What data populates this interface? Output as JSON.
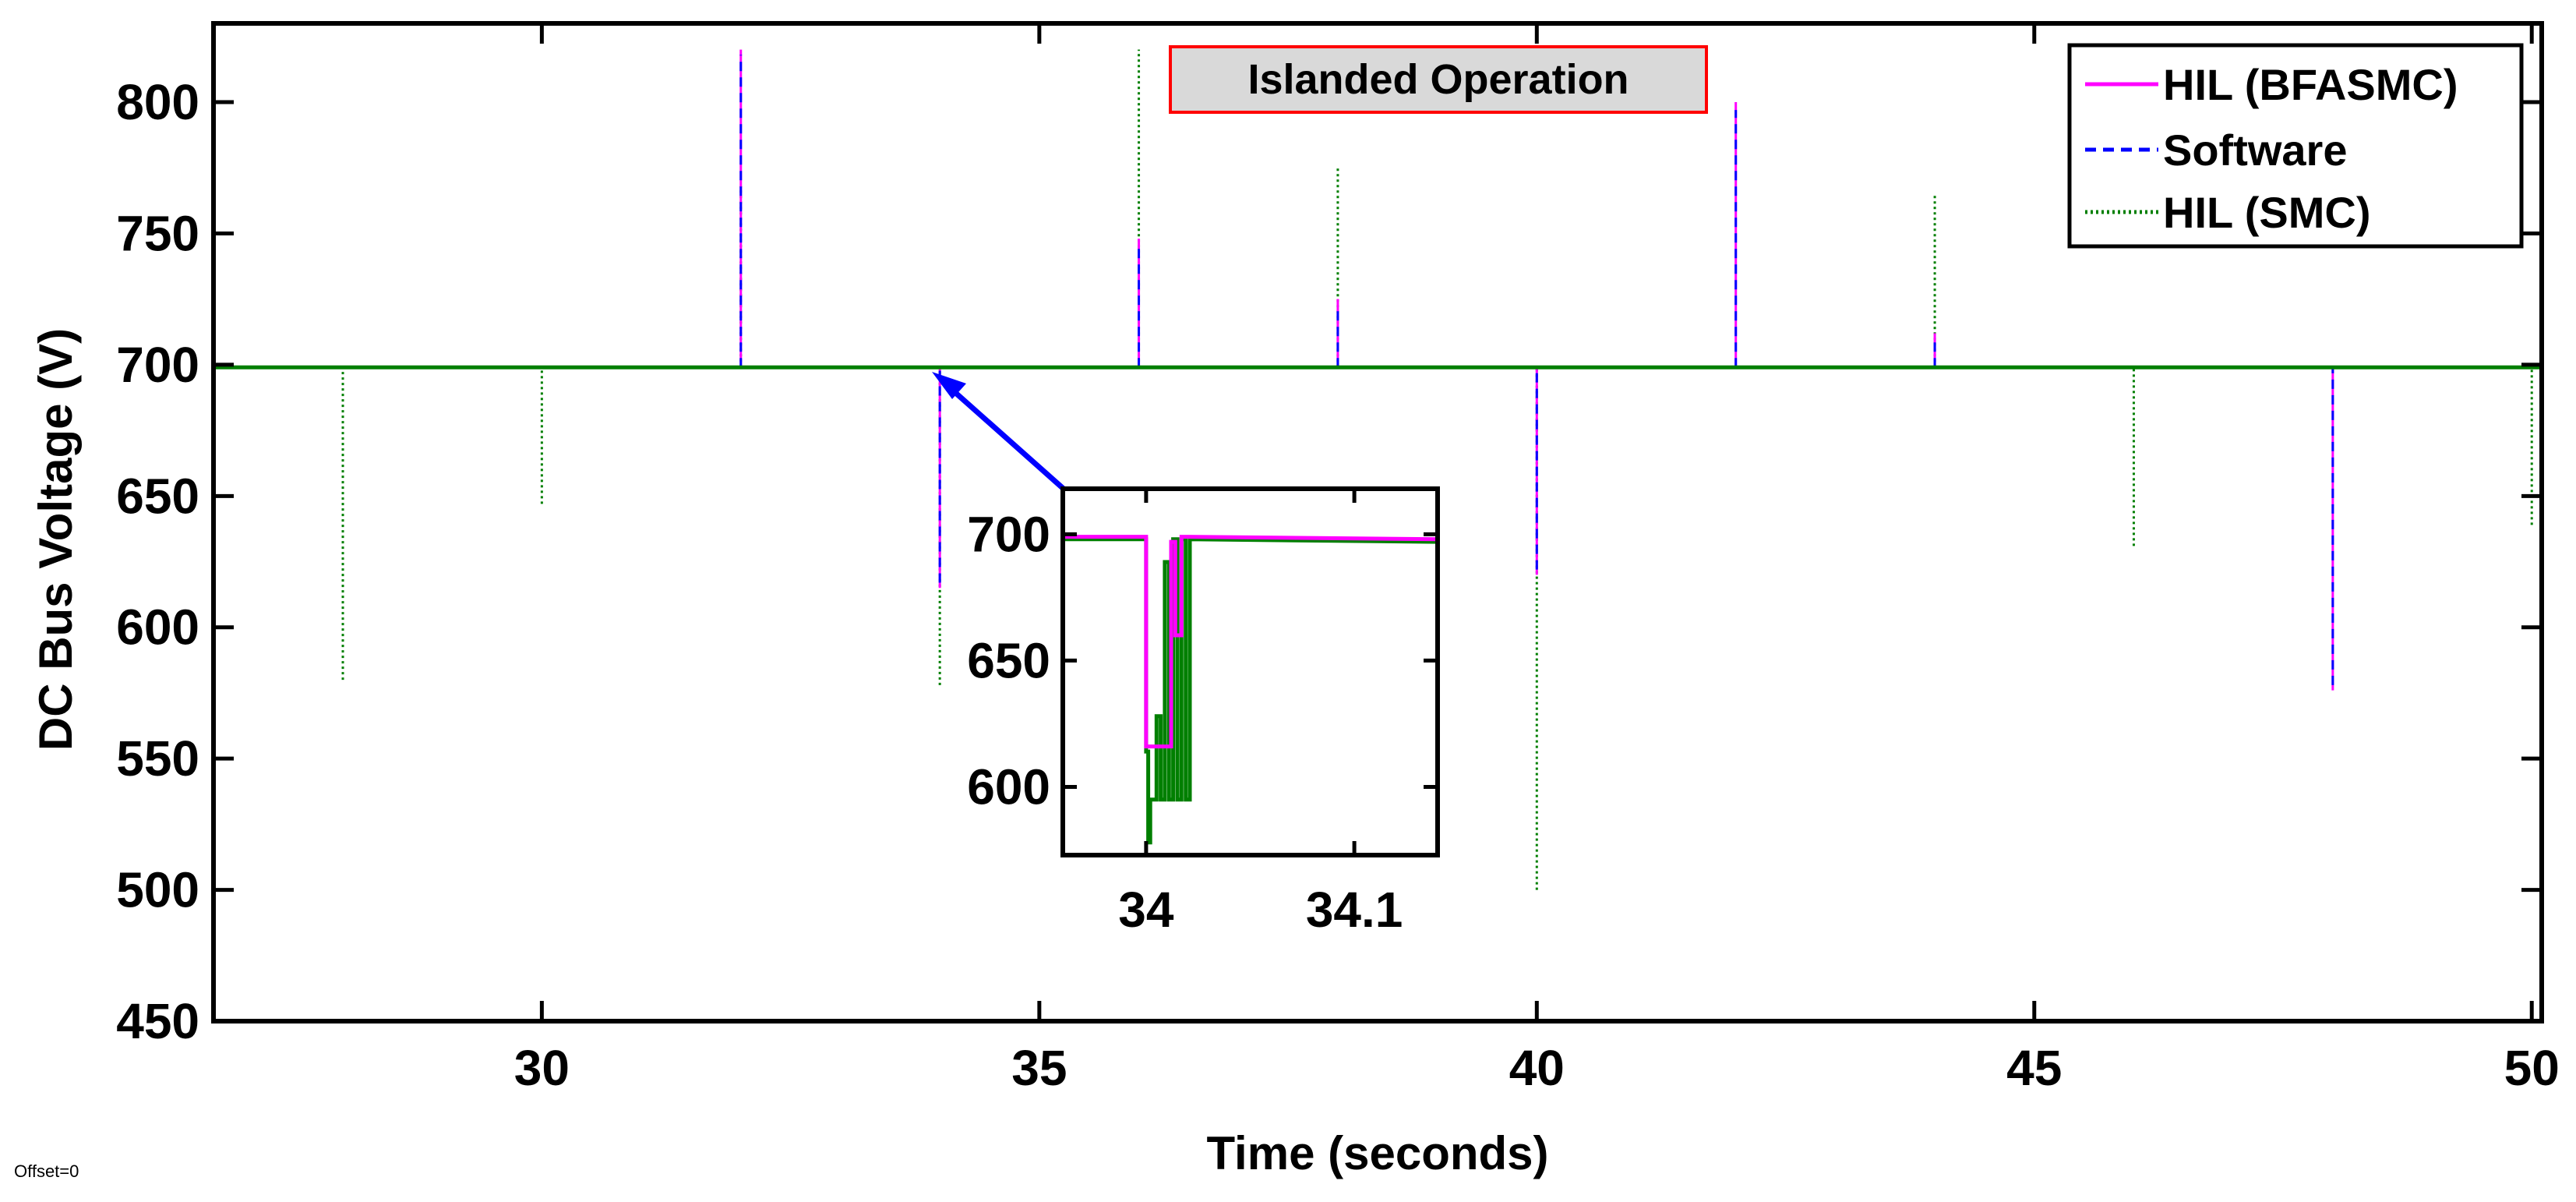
{
  "chart_data": {
    "type": "line",
    "title": "",
    "annotation": "Islanded Operation",
    "offset_label": "Offset=0",
    "xlabel": "Time (seconds)",
    "ylabel": "DC Bus Voltage (V)",
    "xlim": [
      26.7,
      50.1
    ],
    "ylim": [
      450,
      830
    ],
    "x_ticks": [
      30,
      35,
      40,
      45,
      50
    ],
    "y_ticks": [
      450,
      500,
      550,
      600,
      650,
      700,
      750,
      800
    ],
    "grid": false,
    "legend_position": "top-right",
    "baseline": 699,
    "series": [
      {
        "name": "HIL (BFASMC)",
        "color": "#ff00ff",
        "style": "solid",
        "spikes": [
          {
            "t": 32,
            "min": 699,
            "max": 820
          },
          {
            "t": 34,
            "min": 615,
            "max": 699
          },
          {
            "t": 36,
            "min": 699,
            "max": 748
          },
          {
            "t": 38,
            "min": 699,
            "max": 725
          },
          {
            "t": 40,
            "min": 620,
            "max": 699
          },
          {
            "t": 42,
            "min": 699,
            "max": 800
          },
          {
            "t": 44,
            "min": 699,
            "max": 712
          },
          {
            "t": 48,
            "min": 576,
            "max": 699
          }
        ]
      },
      {
        "name": "Software",
        "color": "#0000ff",
        "style": "dashed",
        "spikes": [
          {
            "t": 32,
            "min": 699,
            "max": 818
          },
          {
            "t": 34,
            "min": 617,
            "max": 699
          },
          {
            "t": 36,
            "min": 699,
            "max": 745
          },
          {
            "t": 38,
            "min": 699,
            "max": 722
          },
          {
            "t": 40,
            "min": 622,
            "max": 699
          },
          {
            "t": 42,
            "min": 699,
            "max": 797
          },
          {
            "t": 44,
            "min": 699,
            "max": 710
          },
          {
            "t": 48,
            "min": 578,
            "max": 699
          }
        ]
      },
      {
        "name": "HIL (SMC)",
        "color": "#007f00",
        "style": "dotted",
        "spikes": [
          {
            "t": 28,
            "min": 580,
            "max": 699
          },
          {
            "t": 30,
            "min": 647,
            "max": 699
          },
          {
            "t": 32,
            "min": 699,
            "max": 768
          },
          {
            "t": 34,
            "min": 578,
            "max": 699
          },
          {
            "t": 36,
            "min": 699,
            "max": 820
          },
          {
            "t": 38,
            "min": 699,
            "max": 775
          },
          {
            "t": 40,
            "min": 500,
            "max": 699
          },
          {
            "t": 44,
            "min": 699,
            "max": 765
          },
          {
            "t": 46,
            "min": 631,
            "max": 699
          },
          {
            "t": 50,
            "min": 639,
            "max": 699
          }
        ]
      }
    ],
    "inset": {
      "xlim": [
        33.96,
        34.14
      ],
      "ylim": [
        573,
        718
      ],
      "x_ticks": [
        34,
        34.1
      ],
      "y_ticks": [
        600,
        650,
        700
      ],
      "pointer_to": {
        "t": 34,
        "v": 699
      },
      "series": [
        {
          "name": "HIL (BFASMC)",
          "color": "#ff00ff",
          "points": [
            [
              33.96,
              699
            ],
            [
              34.0,
              699
            ],
            [
              34.0,
              616
            ],
            [
              34.006,
              616
            ],
            [
              34.006,
              616
            ],
            [
              34.012,
              616
            ],
            [
              34.012,
              697
            ],
            [
              34.014,
              697
            ],
            [
              34.014,
              660
            ],
            [
              34.017,
              660
            ],
            [
              34.017,
              699
            ],
            [
              34.14,
              698
            ]
          ]
        },
        {
          "name": "HIL (SMC)",
          "color": "#007f00",
          "points": [
            [
              33.96,
              698
            ],
            [
              34.0,
              698
            ],
            [
              34.0,
              614
            ],
            [
              34.001,
              614
            ],
            [
              34.001,
              578
            ],
            [
              34.002,
              578
            ],
            [
              34.002,
              595
            ],
            [
              34.005,
              595
            ],
            [
              34.005,
              628
            ],
            [
              34.007,
              628
            ],
            [
              34.007,
              595
            ],
            [
              34.009,
              595
            ],
            [
              34.009,
              689
            ],
            [
              34.011,
              689
            ],
            [
              34.011,
              595
            ],
            [
              34.013,
              595
            ],
            [
              34.013,
              698
            ],
            [
              34.015,
              698
            ],
            [
              34.015,
              595
            ],
            [
              34.017,
              595
            ],
            [
              34.017,
              698
            ],
            [
              34.019,
              698
            ],
            [
              34.019,
              595
            ],
            [
              34.021,
              595
            ],
            [
              34.021,
              698
            ],
            [
              34.14,
              697
            ]
          ]
        }
      ]
    }
  }
}
